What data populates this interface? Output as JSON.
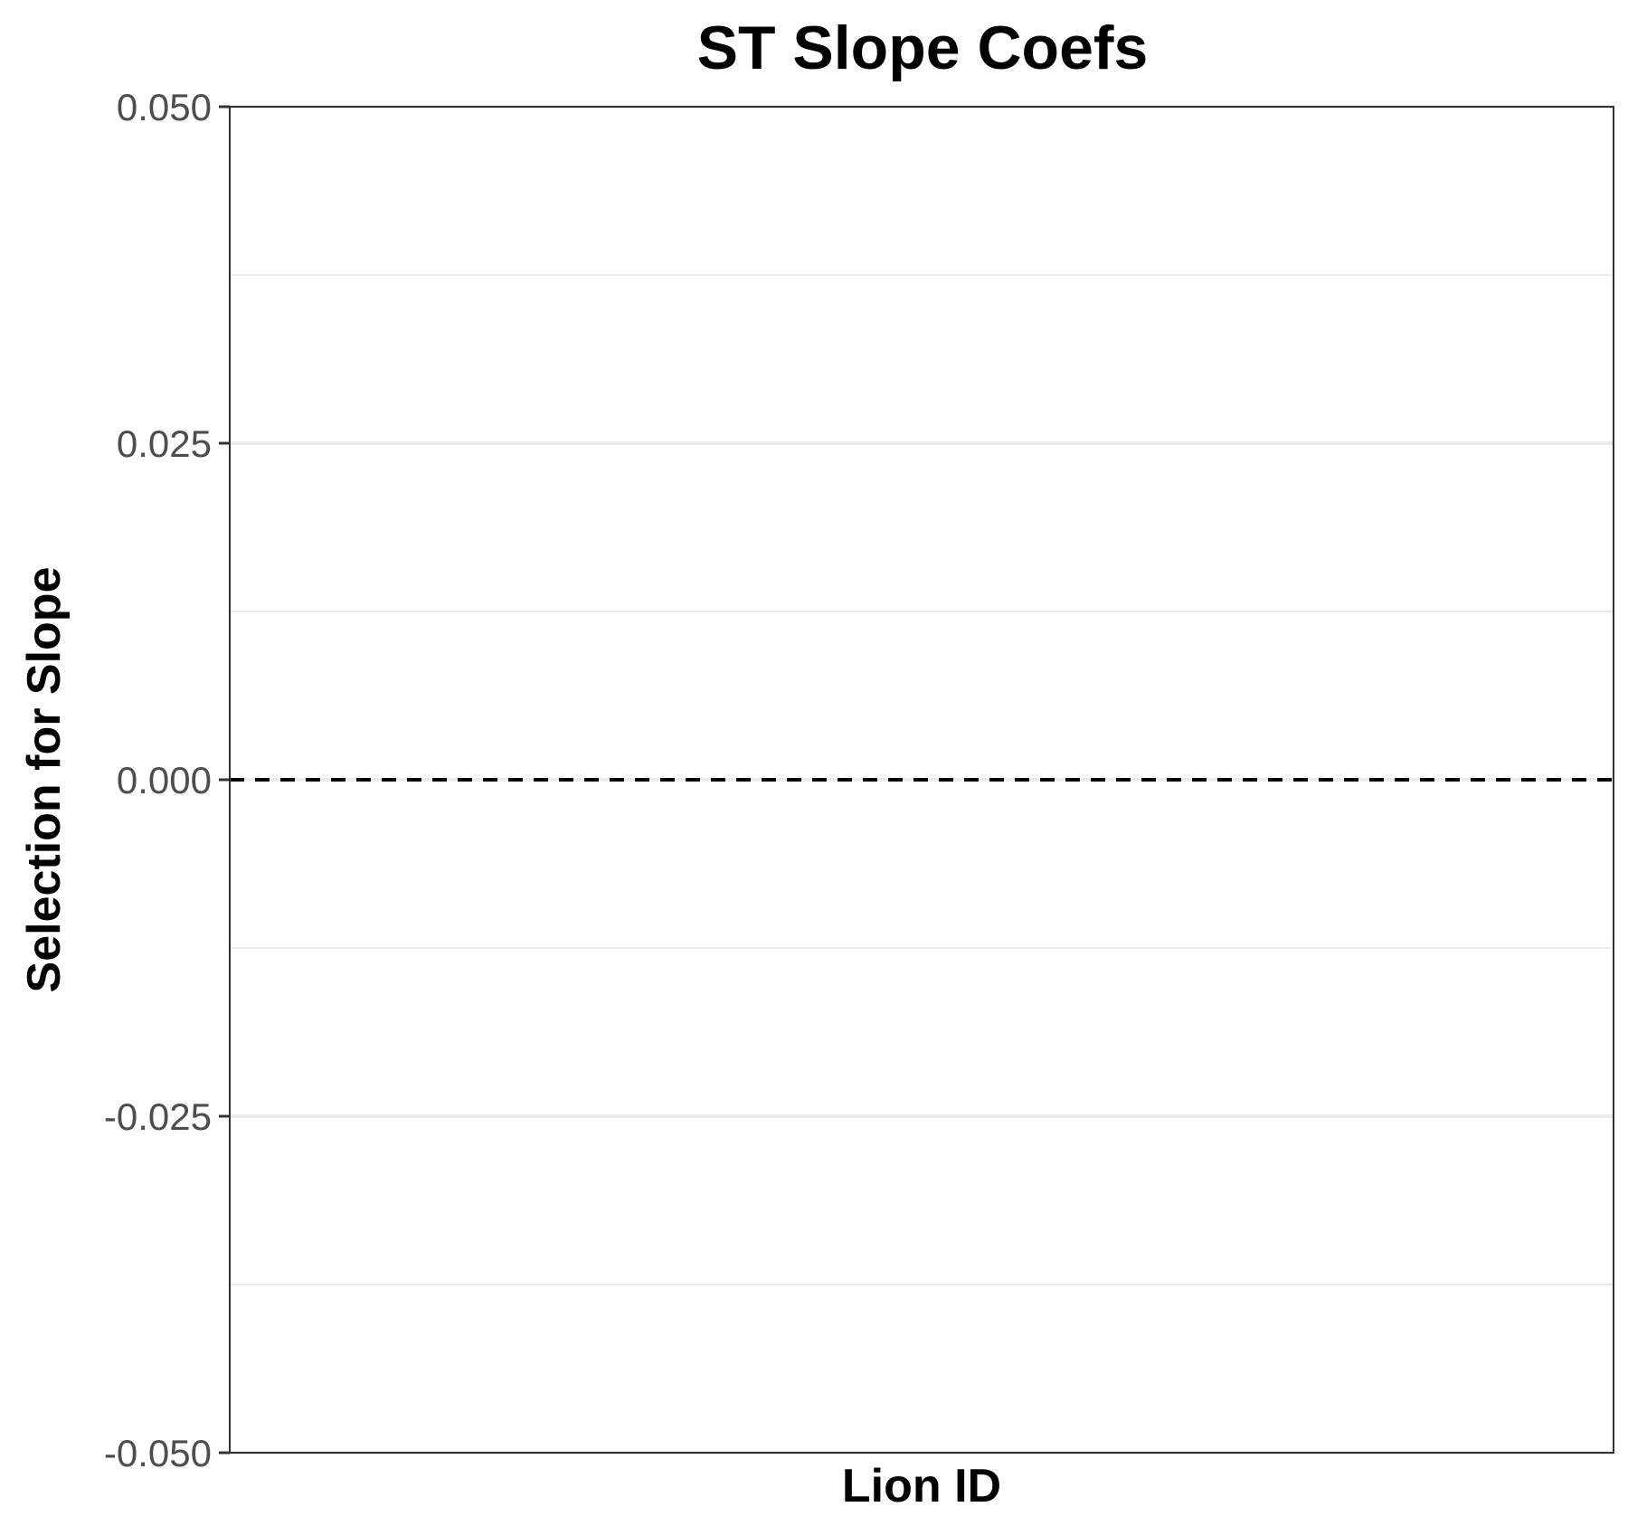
{
  "chart_data": {
    "type": "scatter",
    "title": "ST Slope Coefs",
    "xlabel": "Lion ID",
    "ylabel": "Selection for Slope",
    "ylim": [
      -0.05,
      0.05
    ],
    "y_ticks": [
      "0.050",
      "0.025",
      "0.000",
      "-0.025",
      "-0.050"
    ],
    "y_tick_values": [
      0.05,
      0.025,
      0,
      -0.025,
      -0.05
    ],
    "y_minor_gridlines": [
      0.0375,
      0.0125,
      -0.0125,
      -0.0375
    ],
    "reference_line": {
      "y": 0,
      "style": "dashed",
      "color": "#000000"
    },
    "categories": [],
    "series": [],
    "grid": "horizontal",
    "legend": "none"
  },
  "colors": {
    "background": "#ffffff",
    "panel_border": "#333333",
    "major_grid": "#ebebeb",
    "minor_grid": "#ebebeb",
    "tick_label": "#4d4d4d",
    "text": "#000000"
  }
}
